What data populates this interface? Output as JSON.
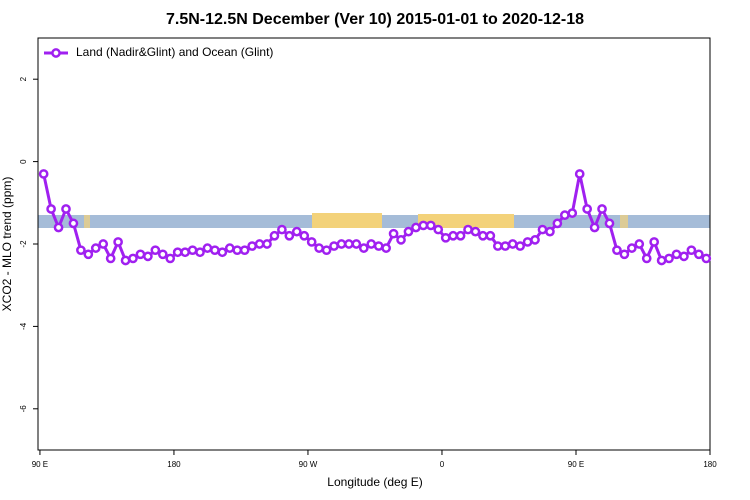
{
  "chart_data": {
    "type": "line",
    "title": "7.5N-12.5N December (Ver 10)   2015-01-01 to 2020-12-18",
    "x_label": "Longitude (deg E)",
    "y_label": "XCO2 - MLO trend (ppm)",
    "x": [
      92.5,
      97.5,
      102.5,
      107.5,
      112.5,
      117.5,
      122.5,
      127.5,
      132.5,
      137.5,
      142.5,
      147.5,
      152.5,
      157.5,
      162.5,
      167.5,
      172.5,
      177.5,
      182.5,
      187.5,
      192.5,
      197.5,
      202.5,
      207.5,
      212.5,
      217.5,
      222.5,
      227.5,
      232.5,
      237.5,
      242.5,
      247.5,
      252.5,
      257.5,
      262.5,
      267.5,
      272.5,
      277.5,
      282.5,
      287.5,
      292.5,
      297.5,
      302.5,
      307.5,
      312.5,
      317.5,
      322.5,
      327.5,
      332.5,
      337.5,
      342.5,
      347.5,
      352.5,
      357.5,
      362.5,
      367.5,
      372.5,
      377.5,
      382.5,
      387.5,
      392.5,
      397.5,
      402.5,
      407.5,
      412.5,
      417.5,
      422.5,
      427.5,
      432.5,
      437.5,
      442.5,
      447.5,
      452.5,
      457.5,
      462.5,
      467.5,
      472.5,
      477.5,
      482.5,
      487.5,
      492.5,
      497.5,
      502.5,
      507.5,
      512.5,
      517.5,
      522.5,
      527.5,
      532.5,
      537.5
    ],
    "series": [
      {
        "name": "Land (Nadir&Glint) and Ocean (Glint)",
        "color": "#a020f0",
        "values": [
          -0.3,
          -1.15,
          -1.6,
          -1.15,
          -1.5,
          -2.15,
          -2.25,
          -2.1,
          -2.0,
          -2.35,
          -1.95,
          -2.4,
          -2.35,
          -2.25,
          -2.3,
          -2.15,
          -2.25,
          -2.35,
          -2.2,
          -2.2,
          -2.15,
          -2.2,
          -2.1,
          -2.15,
          -2.2,
          -2.1,
          -2.15,
          -2.15,
          -2.05,
          -2.0,
          -2.0,
          -1.8,
          -1.65,
          -1.8,
          -1.7,
          -1.8,
          -1.95,
          -2.1,
          -2.15,
          -2.05,
          -2.0,
          -2.0,
          -2.0,
          -2.1,
          -2.0,
          -2.05,
          -2.1,
          -1.75,
          -1.9,
          -1.7,
          -1.6,
          -1.55,
          -1.55,
          -1.65,
          -1.85,
          -1.8,
          -1.8,
          -1.65,
          -1.7,
          -1.8,
          -1.8,
          -2.05,
          -2.05,
          -2.0,
          -2.05,
          -1.95,
          -1.9,
          -1.65,
          -1.7,
          -1.5,
          -1.3,
          -1.25,
          -0.3,
          -1.15,
          -1.6,
          -1.15,
          -1.5,
          -2.15,
          -2.25,
          -2.1,
          -2.0,
          -2.35,
          -1.95,
          -2.4,
          -2.35,
          -2.25,
          -2.3,
          -2.15,
          -2.25,
          -2.35
        ]
      }
    ],
    "xlim": [
      88.7,
      540
    ],
    "xticks": [
      {
        "value": 90,
        "label": "90 E"
      },
      180,
      {
        "value": 270,
        "label": "90 W"
      },
      {
        "value": 360,
        "label": "0"
      },
      {
        "value": 450,
        "label": "90 E"
      },
      {
        "value": 540,
        "label": "180"
      }
    ],
    "ylim": [
      -7,
      3
    ],
    "yticks": [
      2,
      0,
      -2,
      -4,
      -6
    ],
    "legend": "top-left"
  }
}
